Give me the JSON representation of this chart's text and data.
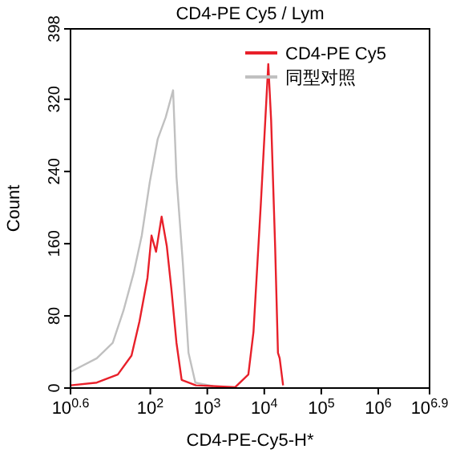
{
  "chart_data": {
    "type": "line",
    "title": "CD4-PE Cy5 / Lym",
    "xlabel": "CD4-PE-Cy5-H*",
    "ylabel": "Count",
    "log": "x",
    "xlim": [
      3.981,
      7943282
    ],
    "ylim": [
      0,
      398
    ],
    "xticks": [
      {
        "value": 3.981,
        "label": "10$^{0.6}$"
      },
      {
        "value": 100,
        "label": "10$^{2}$"
      },
      {
        "value": 1000,
        "label": "10$^{3}$"
      },
      {
        "value": 10000,
        "label": "10$^{4}$"
      },
      {
        "value": 100000,
        "label": "10$^{5}$"
      },
      {
        "value": 1000000,
        "label": "10$^{6}$"
      },
      {
        "value": 7943282,
        "label": "10$^{6.9}$"
      }
    ],
    "yticks": [
      0,
      80,
      160,
      240,
      320,
      398
    ],
    "grid": false,
    "legend": "top right",
    "marker": "none",
    "line_style": "solid",
    "series": [
      {
        "name": "CD4-PE Cy5",
        "color": "#e8202a",
        "x": [
          4.0,
          11.5,
          26.9,
          46.8,
          64.6,
          89.1,
          105,
          126,
          158,
          195,
          234,
          288,
          355,
          631,
          3090,
          5250,
          6460,
          8710,
          10000,
          11750,
          13180,
          15490,
          17380,
          18620,
          21380
        ],
        "values": [
          3,
          6,
          15,
          36,
          74,
          122,
          169,
          151,
          190,
          157,
          110,
          50,
          9,
          3,
          1,
          15,
          62,
          205,
          276,
          359,
          297,
          157,
          39,
          33,
          3
        ]
      },
      {
        "name": "同型对照",
        "color": "#c0c0c0",
        "x": [
          4.0,
          11.5,
          21.9,
          33.9,
          51.3,
          70.8,
          97.7,
          135,
          186,
          251,
          288,
          372,
          468,
          617,
          1259
        ],
        "values": [
          18,
          33,
          50,
          86,
          128,
          169,
          228,
          276,
          300,
          330,
          234,
          139,
          39,
          6,
          2
        ]
      }
    ]
  }
}
